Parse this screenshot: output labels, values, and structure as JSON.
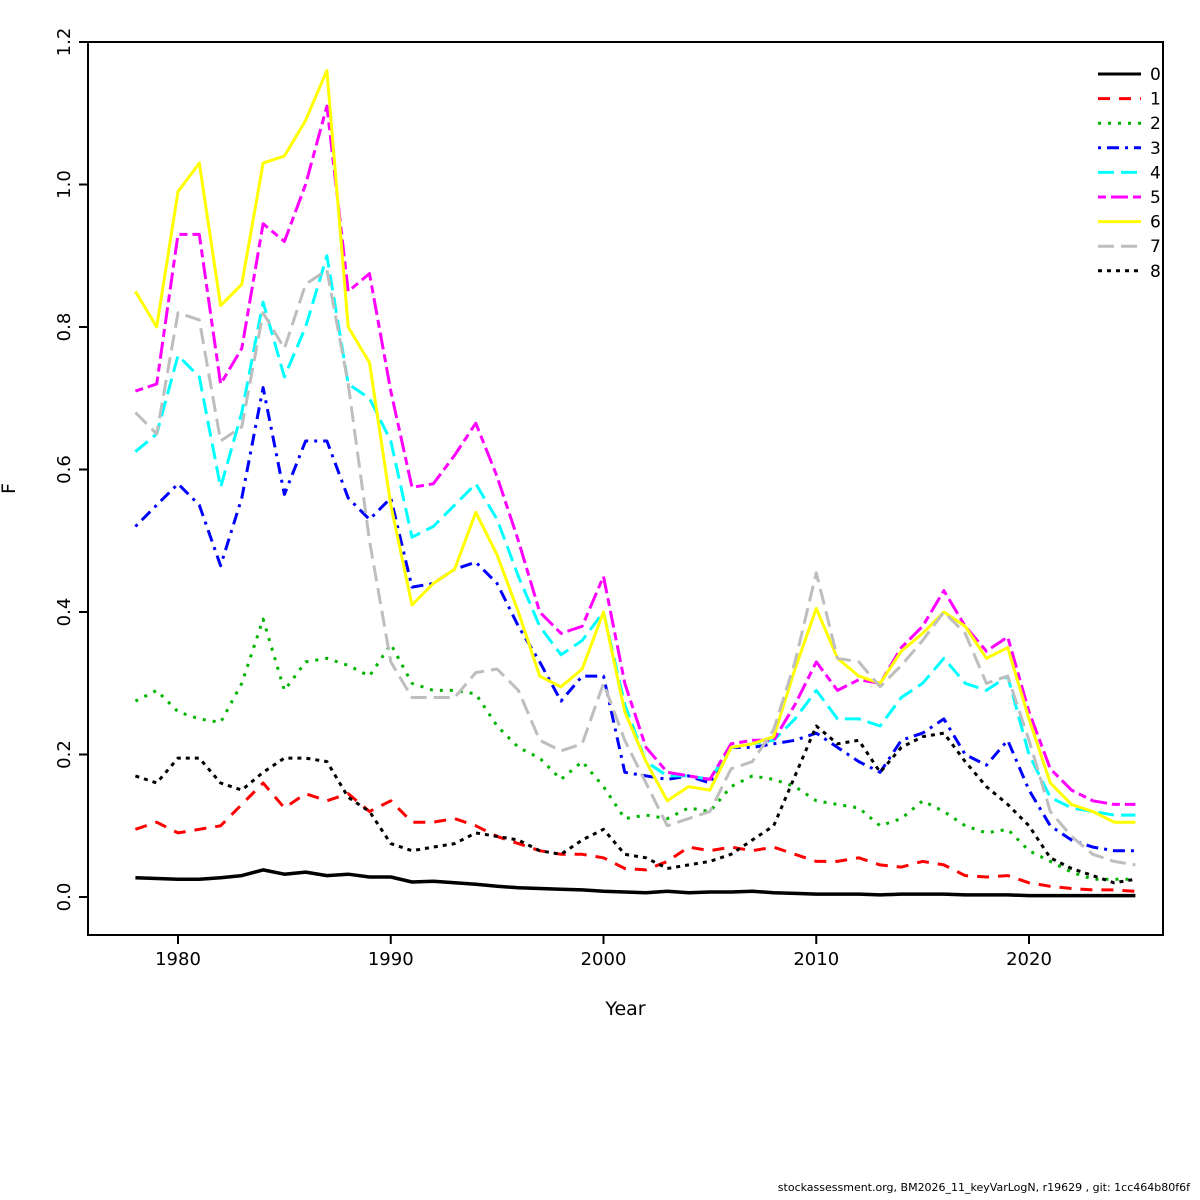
{
  "footer": {
    "text": "stockassessment.org, BM2026_11_keyVarLogN, r19629 , git: 1cc464b80f6f"
  },
  "chart_data": {
    "type": "line",
    "title": "",
    "xlabel": "Year",
    "ylabel": "F",
    "xlim": [
      1978,
      2025
    ],
    "ylim": [
      0.0,
      1.2
    ],
    "x_ticks": [
      1980,
      1990,
      2000,
      2010,
      2020
    ],
    "y_ticks": [
      0.0,
      0.2,
      0.4,
      0.6,
      0.8,
      1.0,
      1.2
    ],
    "grid": false,
    "legend_position": "top-right",
    "x": [
      1978,
      1979,
      1980,
      1981,
      1982,
      1983,
      1984,
      1985,
      1986,
      1987,
      1988,
      1989,
      1990,
      1991,
      1992,
      1993,
      1994,
      1995,
      1996,
      1997,
      1998,
      1999,
      2000,
      2001,
      2002,
      2003,
      2004,
      2005,
      2006,
      2007,
      2008,
      2009,
      2010,
      2011,
      2012,
      2013,
      2014,
      2015,
      2016,
      2017,
      2018,
      2019,
      2020,
      2021,
      2022,
      2023,
      2024,
      2025
    ],
    "series": [
      {
        "name": "0",
        "color": "#000000",
        "linetype": "solid",
        "values": [
          0.027,
          0.026,
          0.025,
          0.025,
          0.027,
          0.03,
          0.038,
          0.032,
          0.035,
          0.03,
          0.032,
          0.028,
          0.028,
          0.021,
          0.022,
          0.02,
          0.018,
          0.015,
          0.013,
          0.012,
          0.011,
          0.01,
          0.008,
          0.007,
          0.006,
          0.008,
          0.006,
          0.007,
          0.007,
          0.008,
          0.006,
          0.005,
          0.004,
          0.004,
          0.004,
          0.003,
          0.004,
          0.004,
          0.004,
          0.003,
          0.003,
          0.003,
          0.002,
          0.002,
          0.002,
          0.002,
          0.002,
          0.002
        ]
      },
      {
        "name": "1",
        "color": "#FF0000",
        "linetype": "dashed",
        "values": [
          0.095,
          0.105,
          0.09,
          0.095,
          0.1,
          0.13,
          0.16,
          0.125,
          0.145,
          0.135,
          0.145,
          0.12,
          0.135,
          0.105,
          0.105,
          0.11,
          0.1,
          0.085,
          0.075,
          0.065,
          0.06,
          0.06,
          0.055,
          0.04,
          0.038,
          0.05,
          0.07,
          0.065,
          0.07,
          0.065,
          0.07,
          0.06,
          0.05,
          0.05,
          0.055,
          0.045,
          0.042,
          0.05,
          0.045,
          0.03,
          0.028,
          0.03,
          0.02,
          0.015,
          0.012,
          0.01,
          0.01,
          0.008
        ]
      },
      {
        "name": "2",
        "color": "#00B400",
        "linetype": "dotted",
        "values": [
          0.275,
          0.29,
          0.26,
          0.25,
          0.245,
          0.3,
          0.39,
          0.29,
          0.33,
          0.335,
          0.325,
          0.31,
          0.355,
          0.3,
          0.29,
          0.29,
          0.285,
          0.24,
          0.21,
          0.195,
          0.165,
          0.19,
          0.155,
          0.11,
          0.115,
          0.11,
          0.125,
          0.12,
          0.155,
          0.17,
          0.165,
          0.155,
          0.135,
          0.13,
          0.125,
          0.1,
          0.11,
          0.135,
          0.12,
          0.1,
          0.09,
          0.095,
          0.065,
          0.05,
          0.035,
          0.025,
          0.025,
          0.025
        ]
      },
      {
        "name": "3",
        "color": "#0000FF",
        "linetype": "dotdash",
        "values": [
          0.52,
          0.55,
          0.58,
          0.55,
          0.465,
          0.56,
          0.715,
          0.565,
          0.64,
          0.64,
          0.56,
          0.53,
          0.56,
          0.435,
          0.44,
          0.46,
          0.47,
          0.44,
          0.38,
          0.33,
          0.275,
          0.31,
          0.31,
          0.175,
          0.17,
          0.165,
          0.17,
          0.16,
          0.21,
          0.21,
          0.215,
          0.22,
          0.23,
          0.21,
          0.19,
          0.175,
          0.22,
          0.23,
          0.25,
          0.2,
          0.185,
          0.22,
          0.15,
          0.1,
          0.08,
          0.07,
          0.065,
          0.065
        ]
      },
      {
        "name": "4",
        "color": "#00FFFF",
        "linetype": "longdash",
        "values": [
          0.625,
          0.65,
          0.76,
          0.73,
          0.575,
          0.68,
          0.835,
          0.73,
          0.8,
          0.9,
          0.72,
          0.7,
          0.64,
          0.505,
          0.52,
          0.55,
          0.58,
          0.53,
          0.45,
          0.38,
          0.34,
          0.36,
          0.4,
          0.27,
          0.19,
          0.17,
          0.17,
          0.165,
          0.21,
          0.215,
          0.22,
          0.25,
          0.29,
          0.25,
          0.25,
          0.24,
          0.28,
          0.3,
          0.335,
          0.3,
          0.29,
          0.31,
          0.2,
          0.14,
          0.125,
          0.12,
          0.115,
          0.115
        ]
      },
      {
        "name": "5",
        "color": "#FF00FF",
        "linetype": "twodash",
        "values": [
          0.71,
          0.72,
          0.93,
          0.93,
          0.72,
          0.77,
          0.945,
          0.92,
          1.0,
          1.11,
          0.85,
          0.875,
          0.71,
          0.575,
          0.58,
          0.62,
          0.665,
          0.59,
          0.5,
          0.4,
          0.37,
          0.38,
          0.45,
          0.3,
          0.21,
          0.175,
          0.17,
          0.165,
          0.215,
          0.22,
          0.22,
          0.27,
          0.33,
          0.29,
          0.305,
          0.3,
          0.35,
          0.38,
          0.43,
          0.38,
          0.345,
          0.365,
          0.26,
          0.18,
          0.15,
          0.135,
          0.13,
          0.13
        ]
      },
      {
        "name": "6",
        "color": "#FFFF00",
        "linetype": "solid",
        "values": [
          0.85,
          0.8,
          0.99,
          1.03,
          0.83,
          0.86,
          1.03,
          1.04,
          1.09,
          1.16,
          0.8,
          0.75,
          0.55,
          0.41,
          0.44,
          0.46,
          0.54,
          0.48,
          0.4,
          0.31,
          0.295,
          0.32,
          0.4,
          0.26,
          0.19,
          0.135,
          0.155,
          0.15,
          0.21,
          0.215,
          0.225,
          0.32,
          0.405,
          0.335,
          0.31,
          0.3,
          0.345,
          0.37,
          0.4,
          0.38,
          0.335,
          0.35,
          0.25,
          0.16,
          0.13,
          0.12,
          0.105,
          0.105
        ]
      },
      {
        "name": "7",
        "color": "#BEBEBE",
        "linetype": "longdash",
        "values": [
          0.68,
          0.65,
          0.82,
          0.81,
          0.64,
          0.66,
          0.82,
          0.77,
          0.86,
          0.88,
          0.72,
          0.5,
          0.33,
          0.28,
          0.28,
          0.28,
          0.315,
          0.32,
          0.29,
          0.22,
          0.205,
          0.215,
          0.3,
          0.22,
          0.16,
          0.1,
          0.11,
          0.12,
          0.18,
          0.19,
          0.235,
          0.33,
          0.455,
          0.335,
          0.33,
          0.295,
          0.325,
          0.36,
          0.4,
          0.37,
          0.3,
          0.31,
          0.22,
          0.12,
          0.085,
          0.06,
          0.05,
          0.045
        ]
      },
      {
        "name": "8",
        "color": "#000000",
        "linetype": "densedash",
        "values": [
          0.17,
          0.16,
          0.195,
          0.195,
          0.16,
          0.15,
          0.175,
          0.195,
          0.195,
          0.19,
          0.14,
          0.12,
          0.075,
          0.065,
          0.07,
          0.075,
          0.09,
          0.085,
          0.08,
          0.065,
          0.06,
          0.08,
          0.095,
          0.06,
          0.055,
          0.04,
          0.045,
          0.05,
          0.06,
          0.08,
          0.1,
          0.17,
          0.24,
          0.215,
          0.22,
          0.175,
          0.21,
          0.225,
          0.23,
          0.19,
          0.155,
          0.13,
          0.1,
          0.055,
          0.04,
          0.03,
          0.02,
          0.025
        ]
      }
    ]
  }
}
